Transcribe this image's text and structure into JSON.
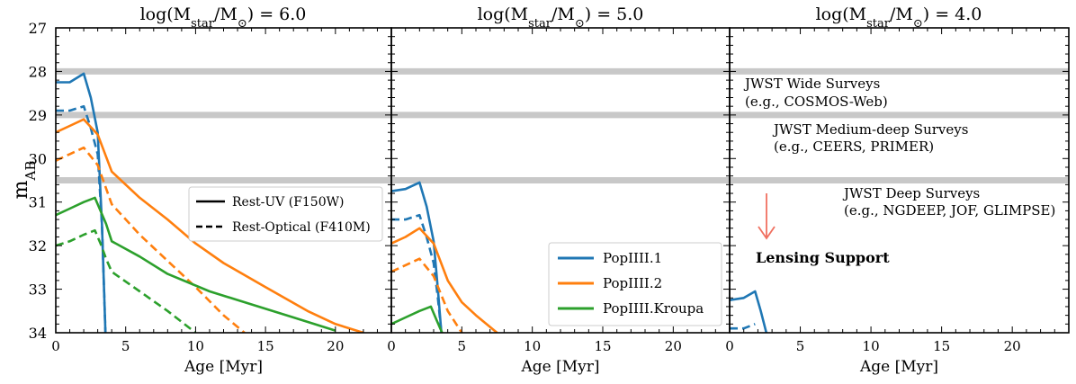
{
  "ylabel_main": "m",
  "ylabel_sub": "AB",
  "ylim": [
    34,
    27
  ],
  "yticks": [
    27,
    28,
    29,
    30,
    31,
    32,
    33,
    34
  ],
  "xlabel": "Age [Myr]",
  "xlim": [
    0,
    24
  ],
  "xticks": [
    0,
    5,
    10,
    15,
    20
  ],
  "colors": {
    "PopIII.1": "#1f77b4",
    "PopIII.2": "#ff7f0e",
    "PopIII.Kroupa": "#2ca02c",
    "survey_band": "#c8c8c8",
    "survey_text": "#808080",
    "lensing": "#f07060"
  },
  "survey_levels": [
    28.0,
    29.0,
    30.5
  ],
  "line_style_legend": {
    "solid": "Rest-UV (F150W)",
    "dashed": "Rest-Optical (F410M)"
  },
  "series_legend": [
    "PopIIII.1",
    "PopIIII.2",
    "PopIIII.Kroupa"
  ],
  "annotations": {
    "wide_1": "JWST Wide Surveys",
    "wide_2": "(e.g., COSMOS-Web)",
    "medium_1": "JWST Medium-deep Surveys",
    "medium_2": "(e.g., CEERS, PRIMER)",
    "deep_1": "JWST Deep Surveys",
    "deep_2": "(e.g., NGDEEP, JOF, GLIMPSE)",
    "lensing": "Lensing Support"
  },
  "chart_data": [
    {
      "type": "line",
      "title_prefix": "log(M",
      "title_sub1": "star",
      "title_mid": "/M",
      "title_sub2": "⊙",
      "title_suffix": ") = 6.0",
      "series": [
        {
          "key": "PopIII.1",
          "style": "solid",
          "x": [
            0,
            1,
            2,
            2.5,
            3,
            3.3,
            3.55
          ],
          "y": [
            28.25,
            28.25,
            28.05,
            28.6,
            29.4,
            31.5,
            34
          ]
        },
        {
          "key": "PopIII.1",
          "style": "dashed",
          "x": [
            0,
            1,
            2,
            2.5,
            3,
            3.3,
            3.55
          ],
          "y": [
            28.9,
            28.9,
            28.8,
            29.3,
            29.9,
            31.5,
            34
          ]
        },
        {
          "key": "PopIII.2",
          "style": "solid",
          "x": [
            0,
            1,
            2,
            3,
            4,
            6,
            8,
            10,
            12,
            15,
            18,
            20,
            22
          ],
          "y": [
            29.4,
            29.25,
            29.1,
            29.45,
            30.3,
            30.9,
            31.4,
            31.95,
            32.4,
            32.95,
            33.5,
            33.8,
            34.0
          ]
        },
        {
          "key": "PopIII.2",
          "style": "dashed",
          "x": [
            0,
            1,
            2,
            3,
            4,
            6,
            8,
            10,
            12,
            13.5
          ],
          "y": [
            30.05,
            29.9,
            29.75,
            30.15,
            31.05,
            31.75,
            32.35,
            32.95,
            33.6,
            34.0
          ]
        },
        {
          "key": "PopIII.Kroupa",
          "style": "solid",
          "x": [
            0,
            1,
            2,
            2.8,
            3.2,
            3.6,
            4,
            6,
            8,
            11,
            14,
            17,
            20
          ],
          "y": [
            31.3,
            31.15,
            31.0,
            30.9,
            31.2,
            31.5,
            31.9,
            32.25,
            32.65,
            33.05,
            33.35,
            33.65,
            33.95
          ]
        },
        {
          "key": "PopIII.Kroupa",
          "style": "dashed",
          "x": [
            0,
            1,
            2,
            2.8,
            3.2,
            3.6,
            4,
            6,
            8,
            10
          ],
          "y": [
            32.0,
            31.9,
            31.75,
            31.65,
            31.95,
            32.3,
            32.6,
            33.05,
            33.5,
            34.0
          ]
        }
      ]
    },
    {
      "type": "line",
      "title_prefix": "log(M",
      "title_sub1": "star",
      "title_mid": "/M",
      "title_sub2": "⊙",
      "title_suffix": ") = 5.0",
      "series": [
        {
          "key": "PopIII.1",
          "style": "solid",
          "x": [
            0,
            1,
            2,
            2.5,
            3,
            3.3,
            3.55
          ],
          "y": [
            30.75,
            30.7,
            30.55,
            31.1,
            31.9,
            33.0,
            34
          ]
        },
        {
          "key": "PopIII.1",
          "style": "dashed",
          "x": [
            0,
            1,
            2,
            2.5,
            3,
            3.3,
            3.55
          ],
          "y": [
            31.4,
            31.4,
            31.3,
            31.8,
            32.4,
            33.2,
            34
          ]
        },
        {
          "key": "PopIII.2",
          "style": "solid",
          "x": [
            0,
            1,
            2,
            3,
            4,
            5,
            6,
            7.5
          ],
          "y": [
            31.95,
            31.8,
            31.6,
            31.95,
            32.8,
            33.3,
            33.6,
            34.0
          ]
        },
        {
          "key": "PopIII.2",
          "style": "dashed",
          "x": [
            0,
            1,
            2,
            3,
            4,
            5
          ],
          "y": [
            32.6,
            32.45,
            32.3,
            32.7,
            33.5,
            34.0
          ]
        },
        {
          "key": "PopIII.Kroupa",
          "style": "solid",
          "x": [
            0,
            1,
            2,
            2.8,
            3.2,
            3.6
          ],
          "y": [
            33.8,
            33.65,
            33.5,
            33.4,
            33.7,
            34.0
          ]
        },
        {
          "key": "PopIII.Kroupa",
          "style": "dashed",
          "x": [
            0,
            1.5,
            2.8
          ],
          "y": [
            34.5,
            34.3,
            34.2
          ]
        }
      ]
    },
    {
      "type": "line",
      "title_prefix": "log(M",
      "title_sub1": "star",
      "title_mid": "/M",
      "title_sub2": "⊙",
      "title_suffix": ") = 4.0",
      "series": [
        {
          "key": "PopIII.1",
          "style": "solid",
          "x": [
            0,
            1,
            1.8,
            2.2,
            2.6
          ],
          "y": [
            33.25,
            33.2,
            33.05,
            33.5,
            34
          ]
        },
        {
          "key": "PopIII.1",
          "style": "dashed",
          "x": [
            0,
            1,
            1.8
          ],
          "y": [
            33.9,
            33.9,
            33.8
          ]
        }
      ]
    }
  ]
}
